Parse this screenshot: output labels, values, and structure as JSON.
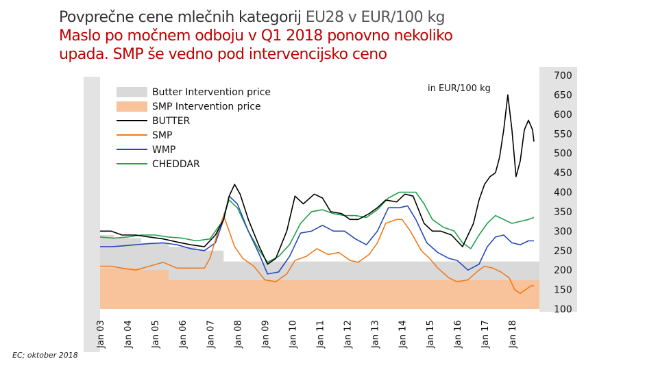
{
  "title_line1_main": "Povprečne cene mlečnih kategorij",
  "title_line1_light": " EU28  v EUR/100 kg",
  "title_line2": "Maslo po močnem odboju v Q1 2018 ponovno nekoliko",
  "title_line3": "upada. SMP še vedno pod intervencijsko ceno",
  "source": "EC; oktober 2018",
  "colors": {
    "butter_intervention": "#d9d9d9",
    "smp_intervention": "#f8c29b",
    "butter": "#000000",
    "smp": "#f07a1c",
    "wmp": "#2348b8",
    "cheddar": "#1fa049"
  },
  "chart_data": {
    "type": "line",
    "unit_label": "in EUR/100 kg",
    "ylim": [
      100,
      700
    ],
    "yticks": [
      100,
      150,
      200,
      250,
      300,
      350,
      400,
      450,
      500,
      550,
      600,
      650,
      700
    ],
    "xlim": [
      2003.0,
      2019.0
    ],
    "xticks": [
      "Jan 03",
      "Jan 04",
      "Jan 05",
      "Jan 06",
      "Jan 07",
      "Jan 08",
      "Jan 09",
      "Jan 10",
      "Jan 11",
      "Jan 12",
      "Jan 13",
      "Jan 14",
      "Jan 15",
      "Jan 16",
      "Jan 17",
      "Jan 18"
    ],
    "legend_position": "top-left",
    "areas": [
      {
        "name": "Butter Intervention price",
        "x": [
          2003.0,
          2003.5,
          2004.5,
          2005.5,
          2006.5,
          2007.5,
          2019.0
        ],
        "y": [
          290,
          282,
          270,
          260,
          250,
          222,
          222
        ]
      },
      {
        "name": "SMP Intervention price",
        "x": [
          2003.0,
          2004.5,
          2005.5,
          2019.0
        ],
        "y": [
          205,
          200,
          174,
          170
        ]
      }
    ],
    "series": [
      {
        "name": "BUTTER",
        "x": [
          2003.0,
          2003.4,
          2003.8,
          2004.3,
          2004.8,
          2005.3,
          2005.8,
          2006.3,
          2006.8,
          2007.2,
          2007.5,
          2007.7,
          2007.9,
          2008.1,
          2008.4,
          2008.8,
          2009.1,
          2009.4,
          2009.8,
          2010.1,
          2010.4,
          2010.8,
          2011.1,
          2011.4,
          2011.8,
          2012.1,
          2012.4,
          2012.8,
          2013.1,
          2013.4,
          2013.8,
          2014.1,
          2014.4,
          2014.8,
          2015.1,
          2015.4,
          2015.8,
          2016.0,
          2016.2,
          2016.4,
          2016.6,
          2016.8,
          2017.0,
          2017.2,
          2017.4,
          2017.55,
          2017.7,
          2017.85,
          2018.0,
          2018.15,
          2018.3,
          2018.45,
          2018.6,
          2018.75,
          2018.8
        ],
        "y": [
          300,
          300,
          290,
          290,
          285,
          280,
          272,
          265,
          260,
          290,
          330,
          390,
          420,
          395,
          330,
          260,
          215,
          230,
          300,
          390,
          370,
          395,
          385,
          350,
          345,
          330,
          330,
          345,
          360,
          380,
          375,
          395,
          390,
          320,
          300,
          300,
          290,
          275,
          260,
          290,
          320,
          380,
          420,
          440,
          450,
          490,
          560,
          650,
          560,
          440,
          480,
          560,
          585,
          560,
          530
        ]
      },
      {
        "name": "SMP",
        "x": [
          2003.0,
          2003.4,
          2003.8,
          2004.3,
          2004.8,
          2005.3,
          2005.8,
          2006.3,
          2006.8,
          2007.0,
          2007.3,
          2007.5,
          2007.7,
          2007.9,
          2008.2,
          2008.6,
          2009.0,
          2009.4,
          2009.8,
          2010.1,
          2010.5,
          2010.9,
          2011.3,
          2011.7,
          2012.1,
          2012.4,
          2012.8,
          2013.1,
          2013.4,
          2013.8,
          2014.0,
          2014.3,
          2014.7,
          2015.0,
          2015.3,
          2015.7,
          2016.0,
          2016.4,
          2016.8,
          2017.0,
          2017.3,
          2017.6,
          2017.9,
          2018.1,
          2018.3,
          2018.5,
          2018.7,
          2018.8
        ],
        "y": [
          210,
          210,
          205,
          200,
          210,
          220,
          205,
          205,
          205,
          230,
          300,
          340,
          300,
          260,
          230,
          210,
          175,
          170,
          190,
          225,
          235,
          255,
          240,
          245,
          225,
          220,
          240,
          270,
          320,
          330,
          330,
          300,
          250,
          230,
          205,
          180,
          170,
          175,
          200,
          210,
          205,
          195,
          180,
          150,
          140,
          150,
          160,
          160
        ]
      },
      {
        "name": "WMP",
        "x": [
          2003.0,
          2003.4,
          2003.8,
          2004.3,
          2004.8,
          2005.3,
          2005.8,
          2006.3,
          2006.8,
          2007.2,
          2007.5,
          2007.7,
          2008.0,
          2008.4,
          2008.8,
          2009.1,
          2009.5,
          2009.9,
          2010.3,
          2010.7,
          2011.1,
          2011.5,
          2011.9,
          2012.3,
          2012.7,
          2013.1,
          2013.5,
          2013.9,
          2014.2,
          2014.5,
          2014.9,
          2015.3,
          2015.7,
          2016.0,
          2016.4,
          2016.8,
          2017.1,
          2017.4,
          2017.7,
          2018.0,
          2018.3,
          2018.6,
          2018.8
        ],
        "y": [
          260,
          260,
          262,
          265,
          268,
          270,
          265,
          255,
          250,
          270,
          330,
          390,
          370,
          300,
          240,
          190,
          195,
          235,
          295,
          300,
          315,
          300,
          300,
          280,
          265,
          300,
          360,
          360,
          365,
          330,
          270,
          245,
          230,
          225,
          200,
          215,
          260,
          285,
          290,
          270,
          265,
          275,
          275
        ]
      },
      {
        "name": "CHEDDAR",
        "x": [
          2003.0,
          2003.5,
          2004.0,
          2004.5,
          2005.0,
          2005.5,
          2006.0,
          2006.5,
          2007.0,
          2007.4,
          2007.7,
          2008.0,
          2008.4,
          2008.8,
          2009.1,
          2009.5,
          2009.9,
          2010.3,
          2010.7,
          2011.1,
          2011.5,
          2011.9,
          2012.3,
          2012.7,
          2013.1,
          2013.5,
          2013.9,
          2014.2,
          2014.5,
          2014.8,
          2015.1,
          2015.5,
          2015.9,
          2016.2,
          2016.5,
          2016.8,
          2017.1,
          2017.4,
          2017.7,
          2018.0,
          2018.3,
          2018.6,
          2018.8
        ],
        "y": [
          285,
          282,
          285,
          290,
          290,
          285,
          282,
          275,
          280,
          320,
          380,
          360,
          300,
          250,
          220,
          235,
          265,
          320,
          350,
          355,
          345,
          340,
          340,
          335,
          355,
          385,
          400,
          400,
          400,
          370,
          330,
          310,
          300,
          270,
          255,
          290,
          320,
          340,
          330,
          320,
          325,
          330,
          335
        ]
      }
    ]
  }
}
